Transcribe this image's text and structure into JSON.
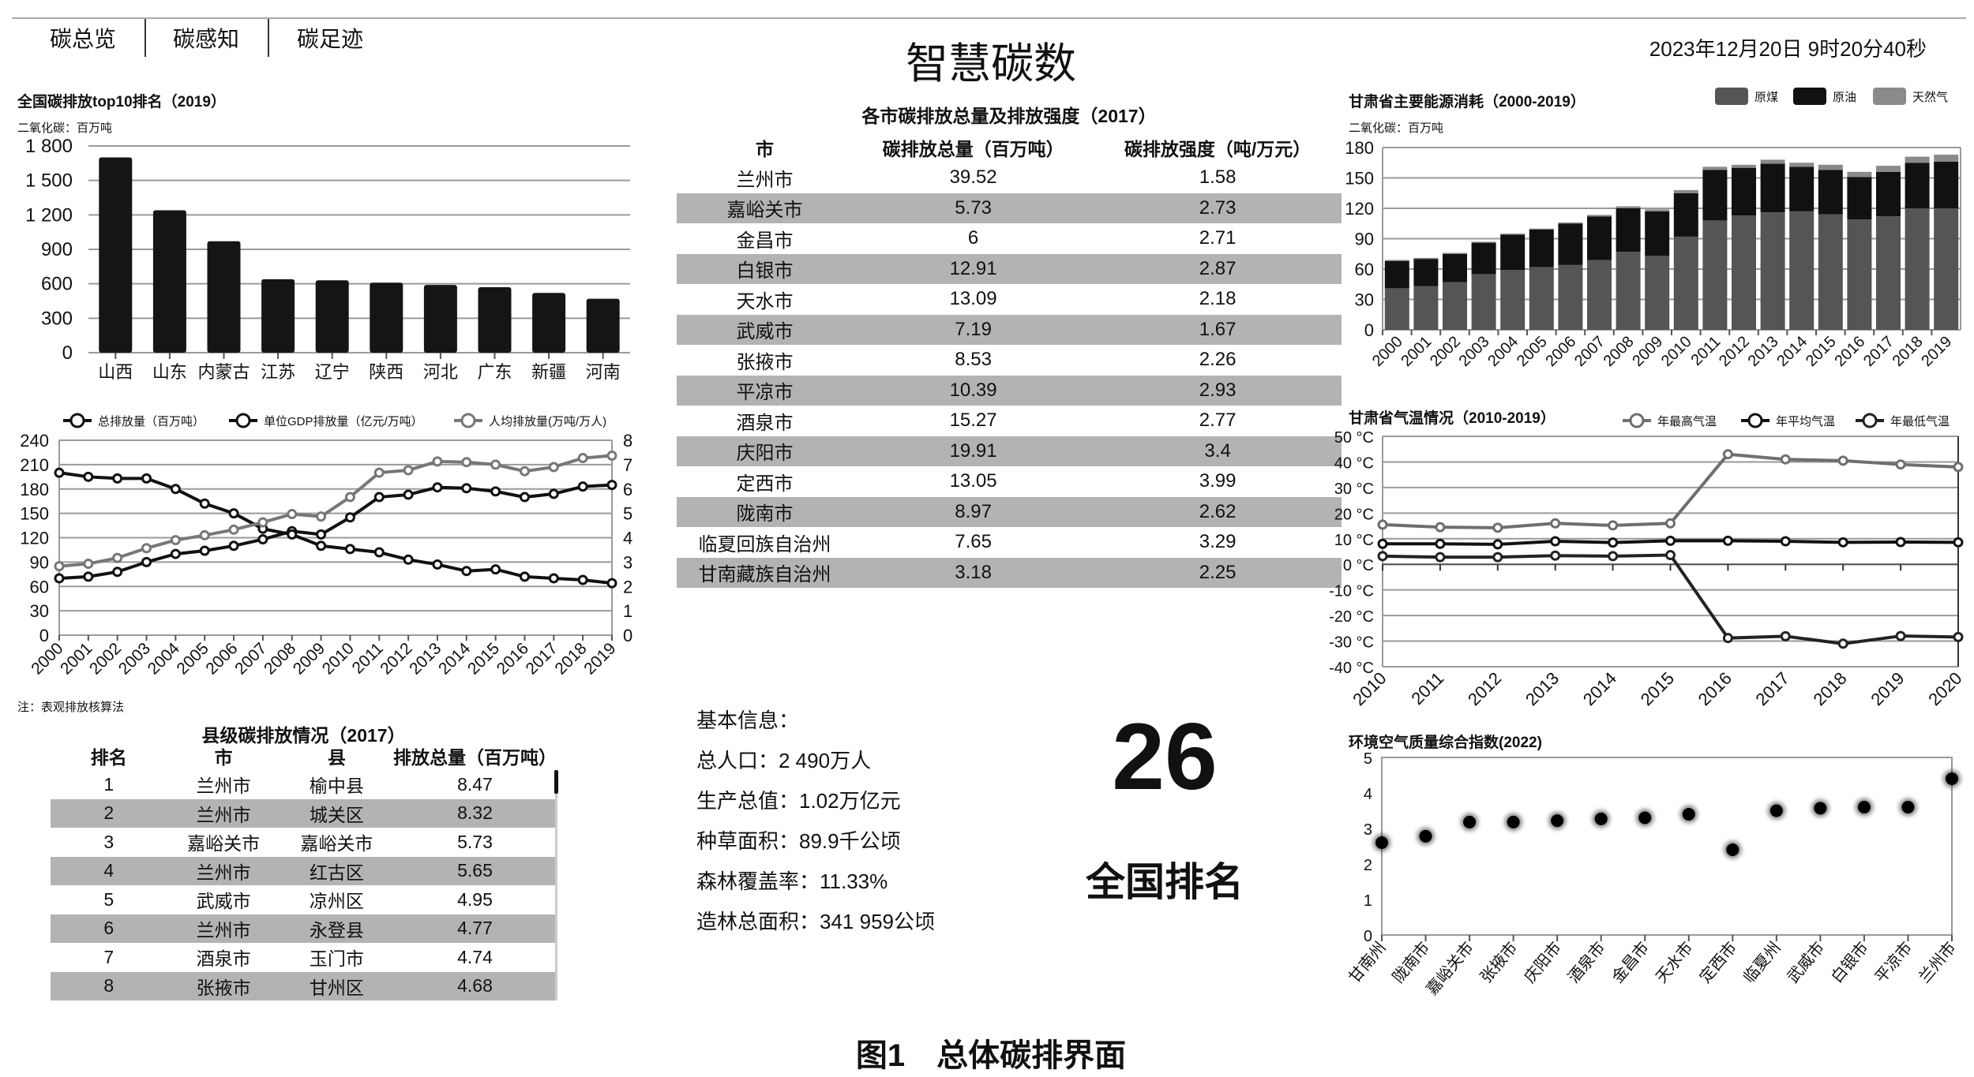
{
  "nav": {
    "tabs": [
      "碳总览",
      "碳感知",
      "碳足迹"
    ]
  },
  "header": {
    "title": "智慧碳数",
    "datetime": "2023年12月20日 9时20分40秒"
  },
  "city_table": {
    "title": "各市碳排放总量及排放强度（2017）",
    "headers": [
      "市",
      "碳排放总量（百万吨）",
      "碳排放强度（吨/万元）"
    ],
    "rows": [
      [
        "兰州市",
        "39.52",
        "1.58"
      ],
      [
        "嘉峪关市",
        "5.73",
        "2.73"
      ],
      [
        "金昌市",
        "6",
        "2.71"
      ],
      [
        "白银市",
        "12.91",
        "2.87"
      ],
      [
        "天水市",
        "13.09",
        "2.18"
      ],
      [
        "武威市",
        "7.19",
        "1.67"
      ],
      [
        "张掖市",
        "8.53",
        "2.26"
      ],
      [
        "平凉市",
        "10.39",
        "2.93"
      ],
      [
        "酒泉市",
        "15.27",
        "2.77"
      ],
      [
        "庆阳市",
        "19.91",
        "3.4"
      ],
      [
        "定西市",
        "13.05",
        "3.99"
      ],
      [
        "陇南市",
        "8.97",
        "2.62"
      ],
      [
        "临夏回族自治州",
        "7.65",
        "3.29"
      ],
      [
        "甘南藏族自治州",
        "3.18",
        "2.25"
      ]
    ]
  },
  "county_table": {
    "title": "县级碳排放情况（2017）",
    "headers": [
      "排名",
      "市",
      "县",
      "排放总量（百万吨）"
    ],
    "rows": [
      [
        "1",
        "兰州市",
        "榆中县",
        "8.47"
      ],
      [
        "2",
        "兰州市",
        "城关区",
        "8.32"
      ],
      [
        "3",
        "嘉峪关市",
        "嘉峪关市",
        "5.73"
      ],
      [
        "4",
        "兰州市",
        "红古区",
        "5.65"
      ],
      [
        "5",
        "武威市",
        "凉州区",
        "4.95"
      ],
      [
        "6",
        "兰州市",
        "永登县",
        "4.77"
      ],
      [
        "7",
        "酒泉市",
        "玉门市",
        "4.74"
      ],
      [
        "8",
        "张掖市",
        "甘州区",
        "4.68"
      ]
    ]
  },
  "note": "注：表观排放核算法",
  "info": {
    "lines": [
      "基本信息：",
      "总人口：2 490万人",
      "生产总值：1.02万亿元",
      "种草面积：89.9千公顷",
      "森林覆盖率：11.33%",
      "造林总面积：341 959公顷"
    ]
  },
  "ranking": {
    "value": "26",
    "label": "全国排名"
  },
  "caption": "图1　总体碳排界面",
  "chart_data": [
    {
      "id": "top10",
      "type": "bar",
      "title": "全国碳排放top10排名（2019）",
      "subtitle": "二氧化碳：百万吨",
      "categories": [
        "山西",
        "山东",
        "内蒙古",
        "江苏",
        "辽宁",
        "陕西",
        "河北",
        "广东",
        "新疆",
        "河南"
      ],
      "values": [
        1700,
        1240,
        970,
        640,
        630,
        610,
        590,
        570,
        520,
        470
      ],
      "ylim": [
        0,
        1800
      ],
      "yticks": [
        "0",
        "300",
        "600",
        "900",
        "1 200",
        "1 500",
        "1 800"
      ],
      "color": "#151515"
    },
    {
      "id": "trend",
      "type": "line",
      "x": [
        "2000",
        "2001",
        "2002",
        "2003",
        "2004",
        "2005",
        "2006",
        "2007",
        "2008",
        "2009",
        "2010",
        "2011",
        "2012",
        "2013",
        "2014",
        "2015",
        "2016",
        "2017",
        "2018",
        "2019"
      ],
      "ylim": [
        0,
        240
      ],
      "yticks": [
        "0",
        "30",
        "60",
        "90",
        "120",
        "150",
        "180",
        "210",
        "240"
      ],
      "y2lim": [
        0,
        8
      ],
      "y2ticks": [
        "0",
        "1",
        "2",
        "3",
        "4",
        "5",
        "6",
        "7",
        "8"
      ],
      "series": [
        {
          "name": "总排放量（百万吨）",
          "axis": "left",
          "color": "#111111",
          "values": [
            70,
            72,
            78,
            90,
            100,
            104,
            110,
            118,
            128,
            124,
            145,
            170,
            173,
            182,
            181,
            177,
            170,
            174,
            183,
            185
          ]
        },
        {
          "name": "单位GDP排放量（亿元/万吨）",
          "axis": "left",
          "color": "#111111",
          "values": [
            200,
            195,
            193,
            193,
            180,
            162,
            150,
            131,
            124,
            110,
            106,
            102,
            93,
            87,
            79,
            81,
            72,
            70,
            68,
            64
          ]
        },
        {
          "name": "人均排放量(万吨/万人)",
          "axis": "right",
          "color": "#777777",
          "values": [
            2.83,
            2.93,
            3.17,
            3.57,
            3.9,
            4.1,
            4.33,
            4.63,
            4.97,
            4.87,
            5.67,
            6.67,
            6.77,
            7.13,
            7.1,
            7.0,
            6.73,
            6.9,
            7.27,
            7.37
          ]
        }
      ]
    },
    {
      "id": "energy",
      "type": "bar",
      "stacked": true,
      "title": "甘肃省主要能源消耗（2000-2019）",
      "subtitle": "二氧化碳：百万吨",
      "categories": [
        "2000",
        "2001",
        "2002",
        "2003",
        "2004",
        "2005",
        "2006",
        "2007",
        "2008",
        "2009",
        "2010",
        "2011",
        "2012",
        "2013",
        "2014",
        "2015",
        "2016",
        "2017",
        "2018",
        "2019"
      ],
      "ylim": [
        0,
        180
      ],
      "yticks": [
        "0",
        "30",
        "60",
        "90",
        "120",
        "150",
        "180"
      ],
      "series": [
        {
          "name": "原煤",
          "color": "#555555",
          "values": [
            41,
            43,
            47,
            55,
            59,
            62,
            64,
            69,
            77,
            73,
            92,
            108,
            113,
            116,
            117,
            114,
            109,
            112,
            120,
            120
          ]
        },
        {
          "name": "原油",
          "color": "#111111",
          "values": [
            27,
            27,
            28,
            31,
            35,
            37,
            41,
            43,
            43,
            44,
            43,
            50,
            47,
            48,
            44,
            44,
            42,
            44,
            45,
            46
          ]
        },
        {
          "name": "天然气",
          "color": "#8a8a8a",
          "values": [
            1,
            1,
            1,
            1,
            1,
            1,
            1,
            1.5,
            2,
            2,
            3,
            3,
            3,
            4,
            4,
            5,
            5,
            6,
            6,
            7
          ]
        }
      ]
    },
    {
      "id": "temp",
      "type": "line",
      "title": "甘肃省气温情况（2010-2019）",
      "x": [
        "2010",
        "2011",
        "2012",
        "2013",
        "2014",
        "2015",
        "2016",
        "2017",
        "2018",
        "2019",
        "2020"
      ],
      "ylim": [
        -40,
        50
      ],
      "yticks": [
        "-40 °C",
        "-30 °C",
        "-20 °C",
        "-10 °C",
        "0 °C",
        "10 °C",
        "20 °C",
        "30 °C",
        "40 °C",
        "50 °C"
      ],
      "series": [
        {
          "name": "年最高气温",
          "color": "#6e6e6e",
          "values": [
            15.5,
            14.5,
            14.3,
            16,
            15.2,
            16,
            43,
            41,
            40.5,
            39,
            38
          ]
        },
        {
          "name": "年平均气温",
          "color": "#111111",
          "values": [
            8,
            8,
            7.8,
            9,
            8.5,
            9.2,
            9.2,
            9,
            8.6,
            8.7,
            8.6
          ]
        },
        {
          "name": "年最低气温",
          "color": "#222222",
          "values": [
            3.2,
            2.8,
            2.8,
            3.4,
            3.2,
            3.6,
            -28.8,
            -28.1,
            -31,
            -28,
            -28.4
          ]
        }
      ]
    },
    {
      "id": "aqi",
      "type": "scatter",
      "title": "环境空气质量综合指数(2022)",
      "categories": [
        "甘南州",
        "陇南市",
        "嘉峪关市",
        "张掖市",
        "庆阳市",
        "酒泉市",
        "金昌市",
        "天水市",
        "定西市",
        "临夏州",
        "武威市",
        "白银市",
        "平凉市",
        "兰州市"
      ],
      "values": [
        2.6,
        2.78,
        3.18,
        3.18,
        3.22,
        3.27,
        3.3,
        3.4,
        2.4,
        3.5,
        3.57,
        3.6,
        3.6,
        4.4
      ],
      "ylim": [
        0,
        5
      ],
      "yticks": [
        "0",
        "1",
        "2",
        "3",
        "4",
        "5"
      ]
    }
  ]
}
